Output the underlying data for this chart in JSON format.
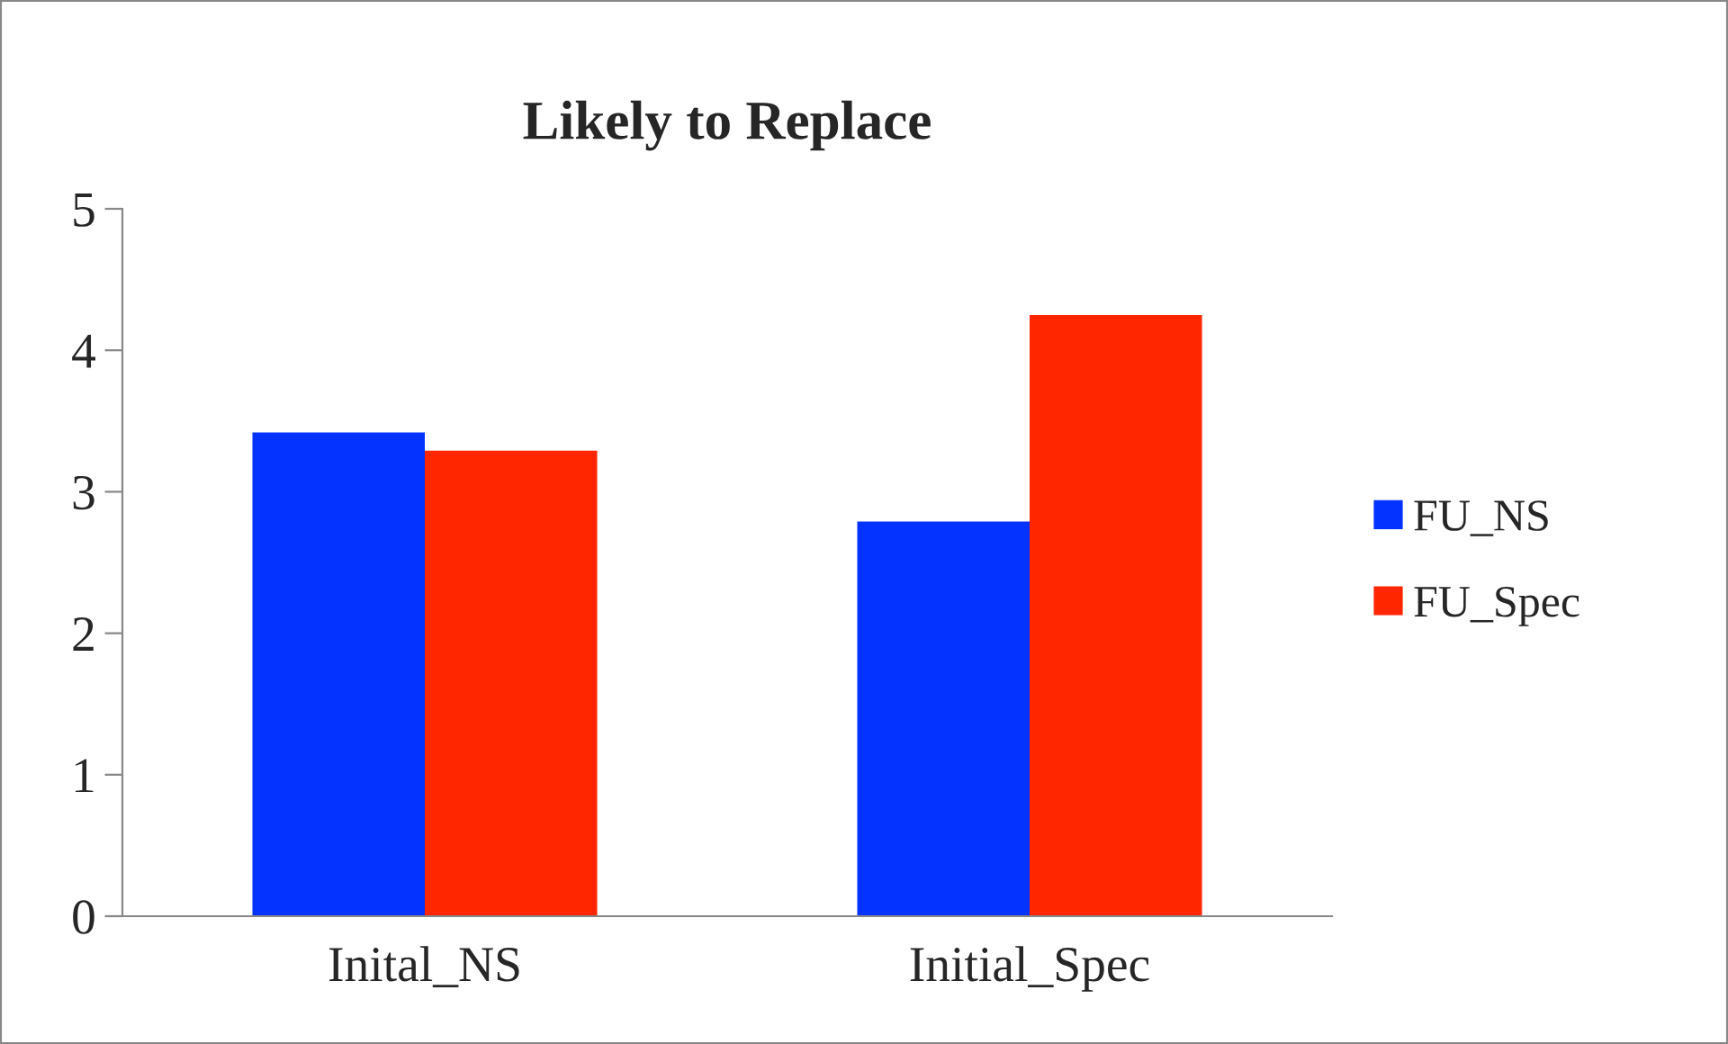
{
  "chart_data": {
    "type": "bar",
    "title": "Likely to Replace",
    "categories": [
      "Inital_NS",
      "Initial_Spec"
    ],
    "series": [
      {
        "name": "FU_NS",
        "color": "#0433ff",
        "values": [
          3.42,
          2.79
        ]
      },
      {
        "name": "FU_Spec",
        "color": "#ff2600",
        "values": [
          3.29,
          4.25
        ]
      }
    ],
    "ylim": [
      0,
      5
    ],
    "yticks": [
      0,
      1,
      2,
      3,
      4,
      5
    ],
    "grid": false,
    "legend": "right"
  }
}
